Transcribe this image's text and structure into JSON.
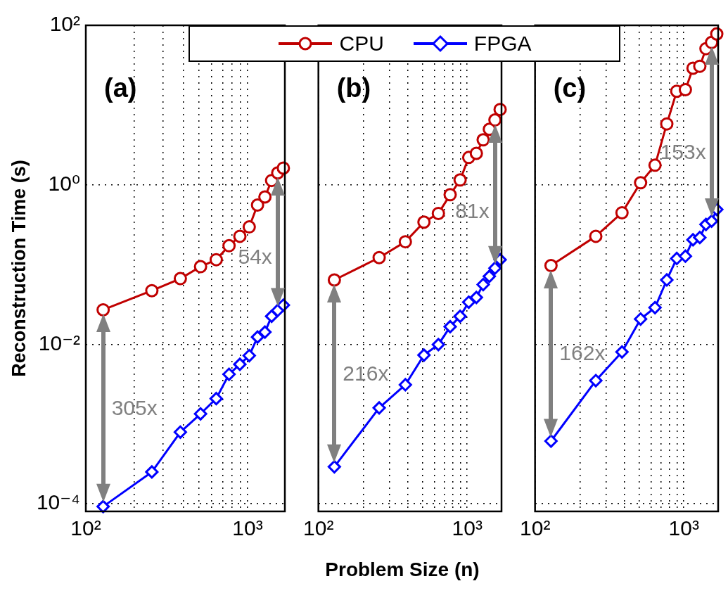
{
  "chart_data": [
    {
      "type": "line",
      "title": "(a)",
      "ylabel": "Reconstruction Time (s)",
      "log": "xy",
      "grid": true,
      "legend": "top",
      "tick_labels": "xy",
      "xlim": [
        100,
        1700
      ],
      "ylim": [
        8e-05,
        100
      ],
      "xticks": [
        {
          "value": 100,
          "label": "10²"
        },
        {
          "value": 200,
          "label": null
        },
        {
          "value": 300,
          "label": null
        },
        {
          "value": 400,
          "label": null
        },
        {
          "value": 500,
          "label": null
        },
        {
          "value": 600,
          "label": null
        },
        {
          "value": 700,
          "label": null
        },
        {
          "value": 800,
          "label": null
        },
        {
          "value": 900,
          "label": null
        },
        {
          "value": 1000,
          "label": "10³"
        }
      ],
      "yticks": [
        {
          "value": 0.0001,
          "label": "10⁻⁴"
        },
        {
          "value": 0.01,
          "label": "10⁻²"
        },
        {
          "value": 1,
          "label": "10⁰"
        },
        {
          "value": 100,
          "label": "10²"
        }
      ],
      "x": [
        128,
        256,
        384,
        512,
        640,
        768,
        896,
        1024,
        1152,
        1280,
        1408,
        1536,
        1664
      ],
      "series": [
        {
          "name": "CPU",
          "color": "#c00000",
          "marker": "circle",
          "values": [
            0.027,
            0.047,
            0.0665,
            0.094,
            0.115,
            0.172,
            0.226,
            0.296,
            0.557,
            0.703,
            1.13,
            1.41,
            1.62
          ]
        },
        {
          "name": "FPGA",
          "color": "#0000ff",
          "marker": "diamond",
          "values": [
            9.2e-05,
            0.00025,
            0.00079,
            0.00134,
            0.00208,
            0.0042,
            0.0056,
            0.0072,
            0.0123,
            0.0142,
            0.0224,
            0.0266,
            0.0309
          ]
        }
      ],
      "annotations": [
        "305x",
        "54x"
      ]
    },
    {
      "type": "line",
      "title": "(b)",
      "xlabel": "Problem Size (n)",
      "log": "xy",
      "grid": true,
      "tick_labels": "x",
      "xlim": [
        100,
        1700
      ],
      "ylim": [
        8e-05,
        100
      ],
      "xticks": [
        {
          "value": 100,
          "label": "10²"
        },
        {
          "value": 200,
          "label": null
        },
        {
          "value": 300,
          "label": null
        },
        {
          "value": 400,
          "label": null
        },
        {
          "value": 500,
          "label": null
        },
        {
          "value": 600,
          "label": null
        },
        {
          "value": 700,
          "label": null
        },
        {
          "value": 800,
          "label": null
        },
        {
          "value": 900,
          "label": null
        },
        {
          "value": 1000,
          "label": "10³"
        }
      ],
      "yticks": [
        0.0001,
        0.01,
        1,
        100
      ],
      "x": [
        128,
        256,
        384,
        512,
        640,
        768,
        896,
        1024,
        1152,
        1280,
        1408,
        1536,
        1664
      ],
      "series": [
        {
          "color": "#c00000",
          "marker": "circle",
          "values": [
            0.064,
            0.122,
            0.193,
            0.34,
            0.437,
            0.75,
            1.15,
            2.2,
            2.48,
            3.66,
            4.97,
            6.5,
            8.8
          ]
        },
        {
          "color": "#0000ff",
          "marker": "diamond",
          "values": [
            0.00029,
            0.00159,
            0.0031,
            0.0073,
            0.0099,
            0.0166,
            0.0224,
            0.0337,
            0.0386,
            0.056,
            0.071,
            0.09,
            0.115
          ]
        }
      ],
      "annotations": [
        "216x",
        "81x"
      ]
    },
    {
      "type": "line",
      "title": "(c)",
      "log": "xy",
      "grid": true,
      "tick_labels": "x",
      "xlim": [
        100,
        1700
      ],
      "ylim": [
        8e-05,
        100
      ],
      "xticks": [
        {
          "value": 100,
          "label": "10²"
        },
        {
          "value": 200,
          "label": null
        },
        {
          "value": 300,
          "label": null
        },
        {
          "value": 400,
          "label": null
        },
        {
          "value": 500,
          "label": null
        },
        {
          "value": 600,
          "label": null
        },
        {
          "value": 700,
          "label": null
        },
        {
          "value": 800,
          "label": null
        },
        {
          "value": 900,
          "label": null
        },
        {
          "value": 1000,
          "label": "10³"
        }
      ],
      "yticks": [
        0.0001,
        0.01,
        1,
        100
      ],
      "x": [
        128,
        256,
        384,
        512,
        640,
        768,
        896,
        1024,
        1152,
        1280,
        1408,
        1536,
        1664
      ],
      "series": [
        {
          "color": "#c00000",
          "marker": "circle",
          "values": [
            0.097,
            0.226,
            0.446,
            1.06,
            1.76,
            5.8,
            14.9,
            15.6,
            29,
            30.7,
            51,
            61,
            78
          ]
        },
        {
          "color": "#0000ff",
          "marker": "diamond",
          "values": [
            0.00061,
            0.0035,
            0.008,
            0.0207,
            0.0288,
            0.064,
            0.119,
            0.127,
            0.204,
            0.218,
            0.318,
            0.35,
            0.49
          ]
        }
      ],
      "annotations": [
        "162x",
        "153x"
      ]
    }
  ]
}
